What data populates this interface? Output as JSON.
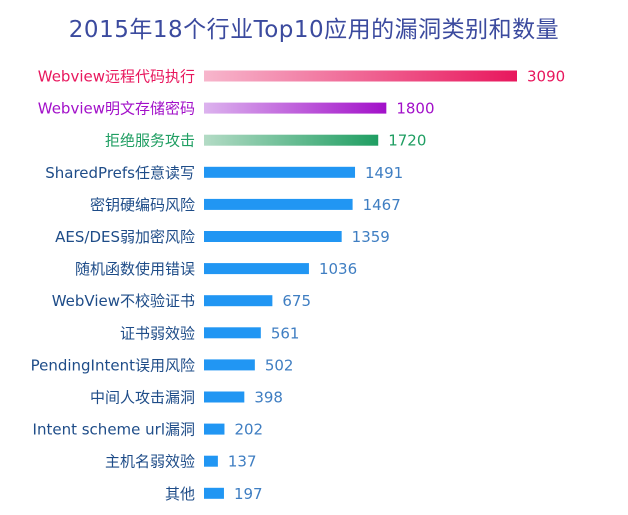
{
  "chart_data": {
    "type": "bar",
    "orientation": "horizontal",
    "title": "2015年18个行业Top10应用的漏洞类别和数量",
    "xlabel": "",
    "ylabel": "",
    "grid": false,
    "legend": "none",
    "xlim": [
      0,
      3090
    ],
    "categories": [
      "Webview远程代码执行",
      "Webview明文存储密码",
      "拒绝服务攻击",
      "SharedPrefs任意读写",
      "密钥硬编码风险",
      "AES/DES弱加密风险",
      "随机函数使用错误",
      "WebView不校验证书",
      "证书弱效验",
      "PendingIntent误用风险",
      "中间人攻击漏洞",
      "Intent scheme url漏洞",
      "主机名弱效验",
      "其他"
    ],
    "values": [
      3090,
      1800,
      1720,
      1491,
      1467,
      1359,
      1036,
      675,
      561,
      502,
      398,
      202,
      137,
      197
    ],
    "styles": [
      {
        "gradient": [
          "#f7b6cc",
          "#e8175d"
        ],
        "label_color": "#e8175d"
      },
      {
        "gradient": [
          "#dcb3ee",
          "#a210c9"
        ],
        "label_color": "#a210c9"
      },
      {
        "gradient": [
          "#b3dbc5",
          "#1f9e62"
        ],
        "label_color": "#1f9e62"
      },
      {
        "color": "#2196f3",
        "label_color": "#1e4c88"
      },
      {
        "color": "#2196f3",
        "label_color": "#1e4c88"
      },
      {
        "color": "#2196f3",
        "label_color": "#1e4c88"
      },
      {
        "color": "#2196f3",
        "label_color": "#1e4c88"
      },
      {
        "color": "#2196f3",
        "label_color": "#1e4c88"
      },
      {
        "color": "#2196f3",
        "label_color": "#1e4c88"
      },
      {
        "color": "#2196f3",
        "label_color": "#1e4c88"
      },
      {
        "color": "#2196f3",
        "label_color": "#1e4c88"
      },
      {
        "color": "#2196f3",
        "label_color": "#1e4c88"
      },
      {
        "color": "#2196f3",
        "label_color": "#1e4c88"
      },
      {
        "color": "#2196f3",
        "label_color": "#1e4c88"
      }
    ],
    "value_label_color": "#3f7ec2"
  }
}
